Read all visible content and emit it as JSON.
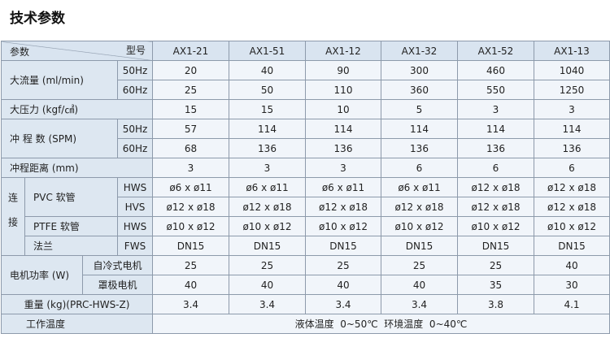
{
  "title": "技术参数",
  "header": {
    "param_label": "参数",
    "model_label": "型号",
    "models": [
      "AX1-21",
      "AX1-51",
      "AX1-12",
      "AX1-32",
      "AX1-52",
      "AX1-13"
    ]
  },
  "rows": {
    "flow": {
      "label": "大流量 (ml/min)",
      "sub": [
        "50Hz",
        "60Hz"
      ],
      "values": [
        [
          "20",
          "40",
          "90",
          "300",
          "460",
          "1040"
        ],
        [
          "25",
          "50",
          "110",
          "360",
          "550",
          "1250"
        ]
      ]
    },
    "pressure": {
      "label": "大压力 (kgf/㎠)",
      "values": [
        "15",
        "15",
        "10",
        "5",
        "3",
        "3"
      ]
    },
    "spm": {
      "label": "冲 程 数 (SPM)",
      "sub": [
        "50Hz",
        "60Hz"
      ],
      "values": [
        [
          "57",
          "114",
          "114",
          "114",
          "114",
          "114"
        ],
        [
          "68",
          "136",
          "136",
          "136",
          "136",
          "136"
        ]
      ]
    },
    "stroke": {
      "label": "冲程距离 (mm)",
      "values": [
        "3",
        "3",
        "3",
        "6",
        "6",
        "6"
      ]
    },
    "connection": {
      "label": "连接",
      "pvc": {
        "label": "PVC 软管",
        "sub": [
          "HWS",
          "HVS"
        ],
        "values": [
          [
            "ø6 x ø11",
            "ø6 x ø11",
            "ø6 x ø11",
            "ø6 x ø11",
            "ø12 x ø18",
            "ø12 x ø18"
          ],
          [
            "ø12 x ø18",
            "ø12 x ø18",
            "ø12 x ø18",
            "ø12 x ø18",
            "ø12 x ø18",
            "ø12 x ø18"
          ]
        ]
      },
      "ptfe": {
        "label": "PTFE 软管",
        "sub": "HWS",
        "values": [
          "ø10 x ø12",
          "ø10 x ø12",
          "ø10 x ø12",
          "ø10 x ø12",
          "ø10 x ø12",
          "ø10 x ø12"
        ]
      },
      "flange": {
        "label": "法兰",
        "sub": "FWS",
        "values": [
          "DN15",
          "DN15",
          "DN15",
          "DN15",
          "DN15",
          "DN15"
        ]
      }
    },
    "motor": {
      "label": "电机功率 (W)",
      "sub": [
        "自冷式电机",
        "罩极电机"
      ],
      "values": [
        [
          "25",
          "25",
          "25",
          "25",
          "25",
          "40"
        ],
        [
          "40",
          "40",
          "40",
          "40",
          "35",
          "30"
        ]
      ]
    },
    "weight": {
      "label": "重量 (kg)(PRC-HWS-Z)",
      "values": [
        "3.4",
        "3.4",
        "3.4",
        "3.4",
        "3.8",
        "4.1"
      ]
    },
    "temp": {
      "label": "工作温度",
      "value": "液体温度  0~50℃  环境温度  0~40℃"
    }
  }
}
